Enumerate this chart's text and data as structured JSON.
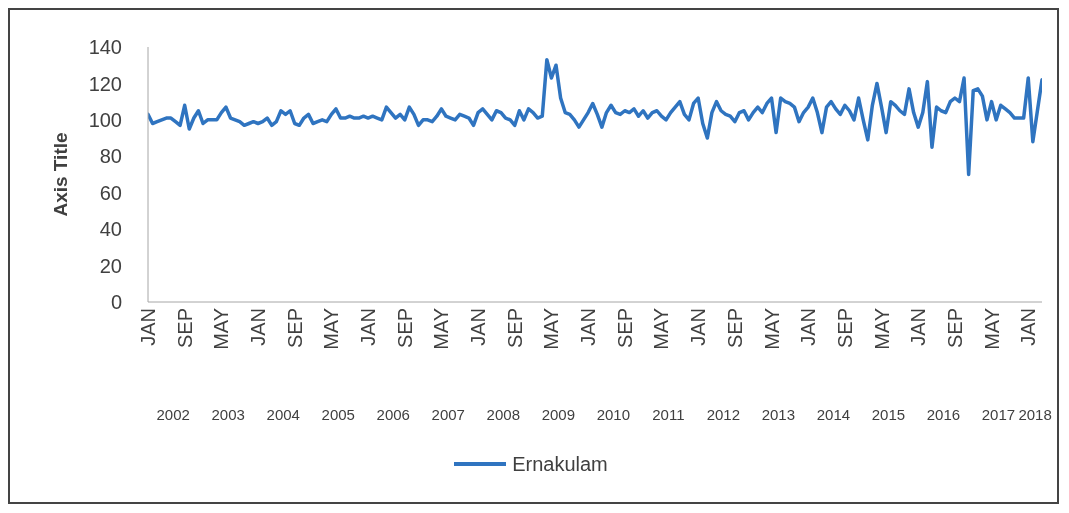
{
  "chart_data": {
    "type": "line",
    "ylabel": "Axis Title",
    "x": [
      "2002-01",
      "2002-02",
      "2002-03",
      "2002-04",
      "2002-05",
      "2002-06",
      "2002-07",
      "2002-08",
      "2002-09",
      "2002-10",
      "2002-11",
      "2002-12",
      "2003-01",
      "2003-02",
      "2003-03",
      "2003-04",
      "2003-05",
      "2003-06",
      "2003-07",
      "2003-08",
      "2003-09",
      "2003-10",
      "2003-11",
      "2003-12",
      "2004-01",
      "2004-02",
      "2004-03",
      "2004-04",
      "2004-05",
      "2004-06",
      "2004-07",
      "2004-08",
      "2004-09",
      "2004-10",
      "2004-11",
      "2004-12",
      "2005-01",
      "2005-02",
      "2005-03",
      "2005-04",
      "2005-05",
      "2005-06",
      "2005-07",
      "2005-08",
      "2005-09",
      "2005-10",
      "2005-11",
      "2005-12",
      "2006-01",
      "2006-02",
      "2006-03",
      "2006-04",
      "2006-05",
      "2006-06",
      "2006-07",
      "2006-08",
      "2006-09",
      "2006-10",
      "2006-11",
      "2006-12",
      "2007-01",
      "2007-02",
      "2007-03",
      "2007-04",
      "2007-05",
      "2007-06",
      "2007-07",
      "2007-08",
      "2007-09",
      "2007-10",
      "2007-11",
      "2007-12",
      "2008-01",
      "2008-02",
      "2008-03",
      "2008-04",
      "2008-05",
      "2008-06",
      "2008-07",
      "2008-08",
      "2008-09",
      "2008-10",
      "2008-11",
      "2008-12",
      "2009-01",
      "2009-02",
      "2009-03",
      "2009-04",
      "2009-05",
      "2009-06",
      "2009-07",
      "2009-08",
      "2009-09",
      "2009-10",
      "2009-11",
      "2009-12",
      "2010-01",
      "2010-02",
      "2010-03",
      "2010-04",
      "2010-05",
      "2010-06",
      "2010-07",
      "2010-08",
      "2010-09",
      "2010-10",
      "2010-11",
      "2010-12",
      "2011-01",
      "2011-02",
      "2011-03",
      "2011-04",
      "2011-05",
      "2011-06",
      "2011-07",
      "2011-08",
      "2011-09",
      "2011-10",
      "2011-11",
      "2011-12",
      "2012-01",
      "2012-02",
      "2012-03",
      "2012-04",
      "2012-05",
      "2012-06",
      "2012-07",
      "2012-08",
      "2012-09",
      "2012-10",
      "2012-11",
      "2012-12",
      "2013-01",
      "2013-02",
      "2013-03",
      "2013-04",
      "2013-05",
      "2013-06",
      "2013-07",
      "2013-08",
      "2013-09",
      "2013-10",
      "2013-11",
      "2013-12",
      "2014-01",
      "2014-02",
      "2014-03",
      "2014-04",
      "2014-05",
      "2014-06",
      "2014-07",
      "2014-08",
      "2014-09",
      "2014-10",
      "2014-11",
      "2014-12",
      "2015-01",
      "2015-02",
      "2015-03",
      "2015-04",
      "2015-05",
      "2015-06",
      "2015-07",
      "2015-08",
      "2015-09",
      "2015-10",
      "2015-11",
      "2015-12",
      "2016-01",
      "2016-02",
      "2016-03",
      "2016-04",
      "2016-05",
      "2016-06",
      "2016-07",
      "2016-08",
      "2016-09",
      "2016-10",
      "2016-11",
      "2016-12",
      "2017-01",
      "2017-02",
      "2017-03",
      "2017-04",
      "2017-05",
      "2017-06",
      "2017-07",
      "2017-08",
      "2017-09",
      "2017-10",
      "2017-11",
      "2017-12",
      "2018-01",
      "2018-02",
      "2018-03",
      "2018-04"
    ],
    "series": [
      {
        "name": "Ernakulam",
        "color": "#2f74c0",
        "values": [
          103,
          98,
          99,
          100,
          101,
          101,
          99,
          97,
          108,
          95,
          101,
          105,
          98,
          100,
          100,
          100,
          104,
          107,
          101,
          100,
          99,
          97,
          98,
          99,
          98,
          99,
          101,
          97,
          99,
          105,
          103,
          105,
          98,
          97,
          101,
          103,
          98,
          99,
          100,
          99,
          103,
          106,
          101,
          101,
          102,
          101,
          101,
          102,
          101,
          102,
          101,
          100,
          107,
          104,
          101,
          103,
          100,
          107,
          103,
          97,
          100,
          100,
          99,
          102,
          106,
          102,
          101,
          100,
          103,
          102,
          101,
          97,
          104,
          106,
          103,
          100,
          105,
          104,
          101,
          100,
          97,
          105,
          100,
          106,
          104,
          101,
          102,
          133,
          123,
          130,
          112,
          104,
          103,
          100,
          96,
          100,
          104,
          109,
          103,
          96,
          104,
          108,
          104,
          103,
          105,
          104,
          106,
          102,
          105,
          101,
          104,
          105,
          102,
          100,
          104,
          107,
          110,
          103,
          100,
          109,
          112,
          98,
          90,
          104,
          110,
          105,
          103,
          102,
          99,
          104,
          105,
          100,
          104,
          107,
          104,
          109,
          112,
          93,
          112,
          110,
          109,
          107,
          99,
          104,
          107,
          112,
          104,
          93,
          107,
          110,
          106,
          103,
          108,
          105,
          100,
          112,
          100,
          89,
          108,
          120,
          107,
          93,
          110,
          108,
          105,
          103,
          117,
          104,
          96,
          104,
          121,
          85,
          107,
          105,
          104,
          110,
          112,
          110,
          123,
          70,
          116,
          117,
          113,
          100,
          110,
          100,
          108,
          106,
          104,
          101,
          101,
          101,
          123,
          88,
          105,
          122
        ]
      }
    ],
    "xlim": [
      "2002-01",
      "2018-04"
    ],
    "xticks": [
      {
        "value": "2002-01",
        "label": "JAN"
      },
      {
        "value": "2002-09",
        "label": "SEP"
      },
      {
        "value": "2003-05",
        "label": "MAY"
      },
      {
        "value": "2004-01",
        "label": "JAN"
      },
      {
        "value": "2004-09",
        "label": "SEP"
      },
      {
        "value": "2005-05",
        "label": "MAY"
      },
      {
        "value": "2006-01",
        "label": "JAN"
      },
      {
        "value": "2006-09",
        "label": "SEP"
      },
      {
        "value": "2007-05",
        "label": "MAY"
      },
      {
        "value": "2008-01",
        "label": "JAN"
      },
      {
        "value": "2008-09",
        "label": "SEP"
      },
      {
        "value": "2009-05",
        "label": "MAY"
      },
      {
        "value": "2010-01",
        "label": "JAN"
      },
      {
        "value": "2010-09",
        "label": "SEP"
      },
      {
        "value": "2011-05",
        "label": "MAY"
      },
      {
        "value": "2012-01",
        "label": "JAN"
      },
      {
        "value": "2012-09",
        "label": "SEP"
      },
      {
        "value": "2013-05",
        "label": "MAY"
      },
      {
        "value": "2014-01",
        "label": "JAN"
      },
      {
        "value": "2014-09",
        "label": "SEP"
      },
      {
        "value": "2015-05",
        "label": "MAY"
      },
      {
        "value": "2016-01",
        "label": "JAN"
      },
      {
        "value": "2016-09",
        "label": "SEP"
      },
      {
        "value": "2017-05",
        "label": "MAY"
      },
      {
        "value": "2018-01",
        "label": "JAN"
      }
    ],
    "ylim": [
      0,
      140
    ],
    "yticks": [
      0,
      20,
      40,
      60,
      80,
      100,
      120,
      140
    ],
    "annotations": [
      "2002",
      "2003",
      "2004",
      "2005",
      "2006",
      "2007",
      "2008",
      "2009",
      "2010",
      "2011",
      "2012",
      "2013",
      "2014",
      "2015",
      "2016",
      "2017",
      "2018"
    ],
    "legend": "bottom"
  }
}
